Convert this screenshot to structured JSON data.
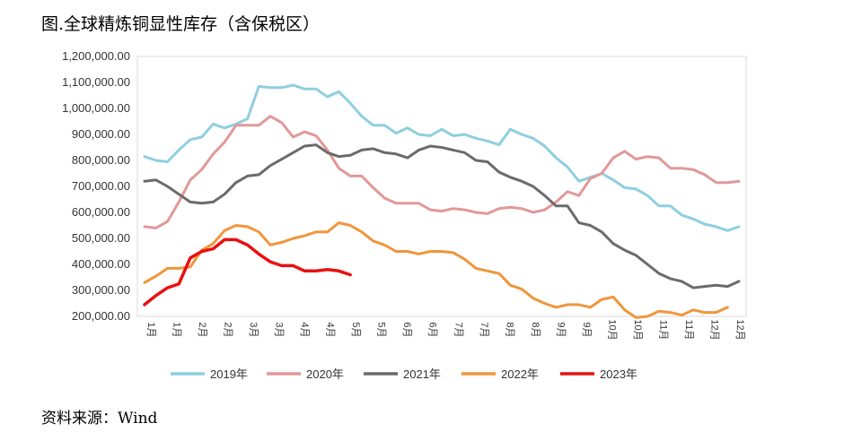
{
  "title": "图.全球精炼铜显性库存（含保税区）",
  "source": "资料来源：Wind",
  "chart_data": {
    "type": "line",
    "title": "图.全球精炼铜显性库存（含保税区）",
    "ylim": [
      200000,
      1200000
    ],
    "y_ticks": [
      "1,200,000.00",
      "1,100,000.00",
      "1,000,000.00",
      "900,000.00",
      "800,000.00",
      "700,000.00",
      "600,000.00",
      "500,000.00",
      "400,000.00",
      "300,000.00",
      "200,000.00"
    ],
    "y_tick_values": [
      1200000,
      1100000,
      1000000,
      900000,
      800000,
      700000,
      600000,
      500000,
      400000,
      300000,
      200000
    ],
    "x_ticks": [
      "1月",
      "1月",
      "2月",
      "2月",
      "3月",
      "3月",
      "4月",
      "4月",
      "5月",
      "5月",
      "6月",
      "6月",
      "7月",
      "7月",
      "8月",
      "8月",
      "9月",
      "9月",
      "10月",
      "10月",
      "11月",
      "11月",
      "12月",
      "12月"
    ],
    "grid": false,
    "legend_position": "bottom",
    "series": [
      {
        "name": "2019年",
        "color": "#8ecfe0",
        "values": [
          815000,
          800000,
          795000,
          840000,
          880000,
          890000,
          940000,
          925000,
          940000,
          960000,
          1085000,
          1080000,
          1080000,
          1090000,
          1075000,
          1075000,
          1045000,
          1065000,
          1020000,
          970000,
          935000,
          935000,
          905000,
          925000,
          900000,
          895000,
          920000,
          895000,
          900000,
          885000,
          875000,
          860000,
          920000,
          900000,
          885000,
          855000,
          810000,
          775000,
          720000,
          735000,
          750000,
          725000,
          695000,
          690000,
          665000,
          625000,
          625000,
          590000,
          575000,
          555000,
          545000,
          530000,
          545000
        ]
      },
      {
        "name": "2020年",
        "color": "#e29898",
        "values": [
          545000,
          540000,
          565000,
          640000,
          725000,
          765000,
          825000,
          870000,
          935000,
          935000,
          935000,
          970000,
          945000,
          890000,
          910000,
          895000,
          840000,
          770000,
          740000,
          740000,
          695000,
          655000,
          635000,
          635000,
          635000,
          610000,
          605000,
          615000,
          610000,
          600000,
          595000,
          615000,
          620000,
          615000,
          600000,
          610000,
          640000,
          680000,
          665000,
          730000,
          750000,
          810000,
          835000,
          805000,
          815000,
          810000,
          770000,
          770000,
          765000,
          745000,
          715000,
          715000,
          720000
        ]
      },
      {
        "name": "2021年",
        "color": "#6b6b6b",
        "values": [
          720000,
          725000,
          700000,
          670000,
          640000,
          635000,
          640000,
          670000,
          715000,
          740000,
          745000,
          780000,
          805000,
          830000,
          855000,
          860000,
          830000,
          815000,
          820000,
          840000,
          845000,
          830000,
          825000,
          810000,
          840000,
          855000,
          850000,
          840000,
          830000,
          800000,
          795000,
          755000,
          735000,
          720000,
          700000,
          665000,
          625000,
          625000,
          560000,
          550000,
          525000,
          480000,
          455000,
          435000,
          400000,
          365000,
          345000,
          335000,
          310000,
          315000,
          320000,
          315000,
          335000
        ]
      },
      {
        "name": "2022年",
        "color": "#f0963c",
        "values": [
          330000,
          355000,
          385000,
          385000,
          390000,
          455000,
          480000,
          530000,
          550000,
          545000,
          525000,
          475000,
          485000,
          500000,
          510000,
          525000,
          525000,
          560000,
          550000,
          525000,
          490000,
          475000,
          450000,
          450000,
          440000,
          450000,
          450000,
          445000,
          420000,
          385000,
          375000,
          365000,
          320000,
          305000,
          270000,
          250000,
          235000,
          245000,
          245000,
          235000,
          265000,
          275000,
          225000,
          195000,
          200000,
          220000,
          215000,
          205000,
          225000,
          215000,
          215000,
          235000
        ]
      },
      {
        "name": "2023年",
        "color": "#e81010",
        "values": [
          245000,
          280000,
          310000,
          325000,
          425000,
          450000,
          460000,
          495000,
          495000,
          475000,
          440000,
          410000,
          395000,
          395000,
          375000,
          375000,
          380000,
          375000,
          360000
        ]
      }
    ]
  }
}
